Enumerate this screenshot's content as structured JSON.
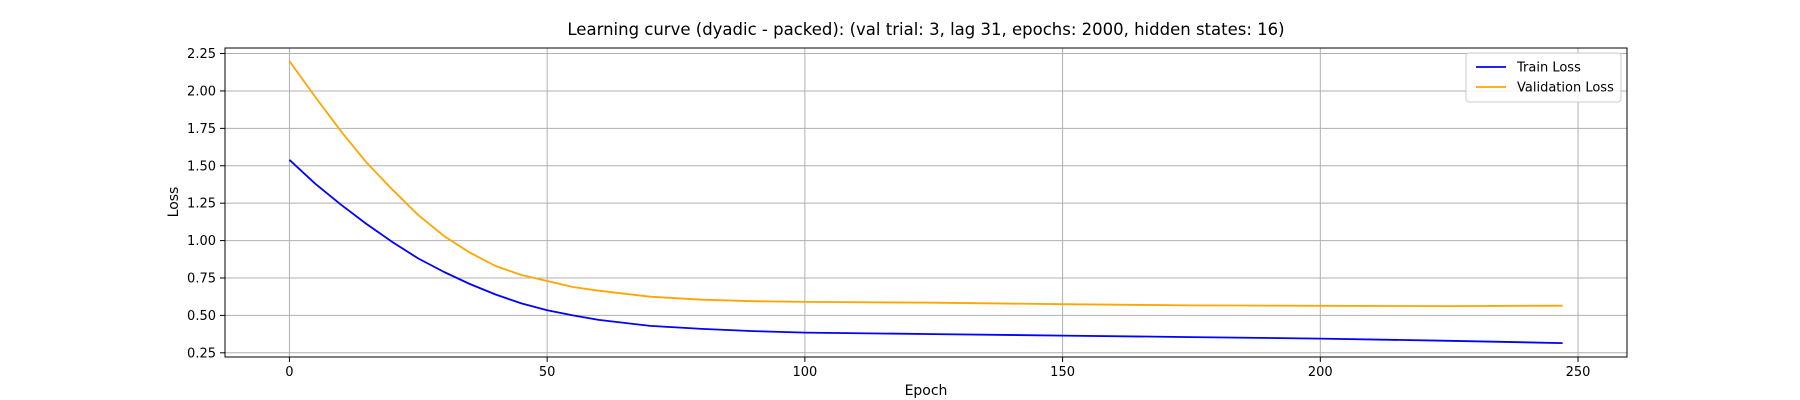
{
  "chart_data": {
    "type": "line",
    "title": "Learning curve (dyadic - packed): (val trial: 3, lag 31, epochs: 2000, hidden states: 16)",
    "xlabel": "Epoch",
    "ylabel": "Loss",
    "xlim": [
      -12.5,
      259.5
    ],
    "ylim": [
      0.222,
      2.287
    ],
    "xticks": [
      0,
      50,
      100,
      150,
      200,
      250
    ],
    "yticks": [
      0.25,
      0.5,
      0.75,
      1.0,
      1.25,
      1.5,
      1.75,
      2.0,
      2.25
    ],
    "xtick_labels": [
      "0",
      "50",
      "100",
      "150",
      "200",
      "250"
    ],
    "ytick_labels": [
      "0.25",
      "0.50",
      "0.75",
      "1.00",
      "1.25",
      "1.50",
      "1.75",
      "2.00",
      "2.25"
    ],
    "grid": true,
    "legend_position": "top-right",
    "series": [
      {
        "name": "Train Loss",
        "color": "#0000ff",
        "x": [
          0,
          5,
          10,
          15,
          20,
          25,
          30,
          35,
          40,
          45,
          50,
          55,
          60,
          70,
          80,
          90,
          100,
          125,
          150,
          175,
          200,
          225,
          247
        ],
        "y": [
          1.54,
          1.38,
          1.24,
          1.11,
          0.99,
          0.88,
          0.79,
          0.71,
          0.64,
          0.58,
          0.535,
          0.5,
          0.47,
          0.43,
          0.41,
          0.395,
          0.385,
          0.375,
          0.365,
          0.355,
          0.345,
          0.33,
          0.315
        ]
      },
      {
        "name": "Validation Loss",
        "color": "#ffa500",
        "x": [
          0,
          5,
          10,
          15,
          20,
          25,
          30,
          35,
          40,
          45,
          50,
          55,
          60,
          70,
          80,
          90,
          100,
          125,
          150,
          175,
          200,
          225,
          247
        ],
        "y": [
          2.2,
          1.96,
          1.73,
          1.52,
          1.34,
          1.17,
          1.03,
          0.92,
          0.83,
          0.77,
          0.73,
          0.69,
          0.665,
          0.625,
          0.605,
          0.595,
          0.59,
          0.585,
          0.575,
          0.567,
          0.564,
          0.562,
          0.565
        ]
      }
    ]
  }
}
